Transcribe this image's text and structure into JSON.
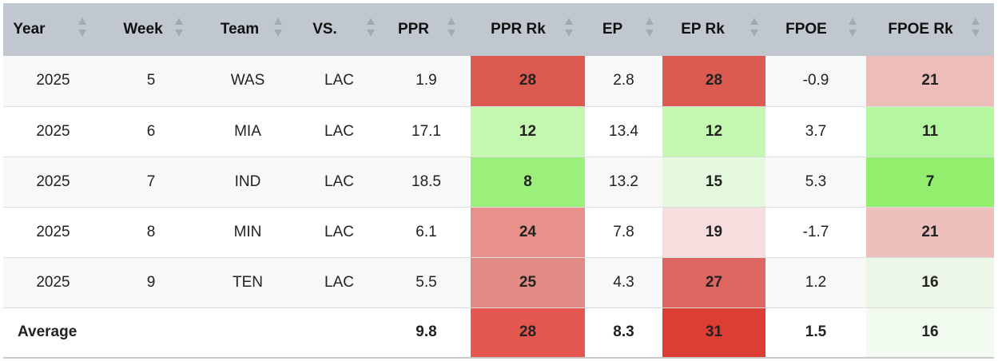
{
  "headers": [
    "Year",
    "Week",
    "Team",
    "VS.",
    "PPR",
    "PPR Rk",
    "EP",
    "EP Rk",
    "FPOE",
    "FPOE Rk"
  ],
  "rows": [
    {
      "year": "2025",
      "week": "5",
      "team": "WAS",
      "vs": "LAC",
      "ppr": "1.9",
      "ppr_rk": "28",
      "ep": "2.8",
      "ep_rk": "28",
      "fpoe": "-0.9",
      "fpoe_rk": "21"
    },
    {
      "year": "2025",
      "week": "6",
      "team": "MIA",
      "vs": "LAC",
      "ppr": "17.1",
      "ppr_rk": "12",
      "ep": "13.4",
      "ep_rk": "12",
      "fpoe": "3.7",
      "fpoe_rk": "11"
    },
    {
      "year": "2025",
      "week": "7",
      "team": "IND",
      "vs": "LAC",
      "ppr": "18.5",
      "ppr_rk": "8",
      "ep": "13.2",
      "ep_rk": "15",
      "fpoe": "5.3",
      "fpoe_rk": "7"
    },
    {
      "year": "2025",
      "week": "8",
      "team": "MIN",
      "vs": "LAC",
      "ppr": "6.1",
      "ppr_rk": "24",
      "ep": "7.8",
      "ep_rk": "19",
      "fpoe": "-1.7",
      "fpoe_rk": "21"
    },
    {
      "year": "2025",
      "week": "9",
      "team": "TEN",
      "vs": "LAC",
      "ppr": "5.5",
      "ppr_rk": "25",
      "ep": "4.3",
      "ep_rk": "27",
      "fpoe": "1.2",
      "fpoe_rk": "16"
    }
  ],
  "average": {
    "label": "Average",
    "ppr": "9.8",
    "ppr_rk": "28",
    "ep": "8.3",
    "ep_rk": "31",
    "fpoe": "1.5",
    "fpoe_rk": "16"
  },
  "rank_colors": {
    "rows": [
      {
        "ppr_rk": "#dd5a50",
        "ep_rk": "#dd5a50",
        "fpoe_rk": "#ecbdb9"
      },
      {
        "ppr_rk": "#c4f8b0",
        "ep_rk": "#c4f8b0",
        "fpoe_rk": "#b5f6a1"
      },
      {
        "ppr_rk": "#9af07a",
        "ep_rk": "#e3f8dc",
        "fpoe_rk": "#92ef6d"
      },
      {
        "ppr_rk": "#e8918b",
        "ep_rk": "#f7dede",
        "fpoe_rk": "#eec0bd"
      },
      {
        "ppr_rk": "#e28b84",
        "ep_rk": "#df6560",
        "fpoe_rk": "#ebf6e7"
      }
    ],
    "average": {
      "ppr_rk": "#e5584f",
      "ep_rk": "#dd3e33",
      "fpoe_rk": "#f2fbef"
    }
  },
  "row_backgrounds": [
    "#f8f8f8",
    "#ffffff",
    "#f8f8f8",
    "#ffffff",
    "#f8f8f8"
  ],
  "sort_icon": "sort-arrows-icon"
}
